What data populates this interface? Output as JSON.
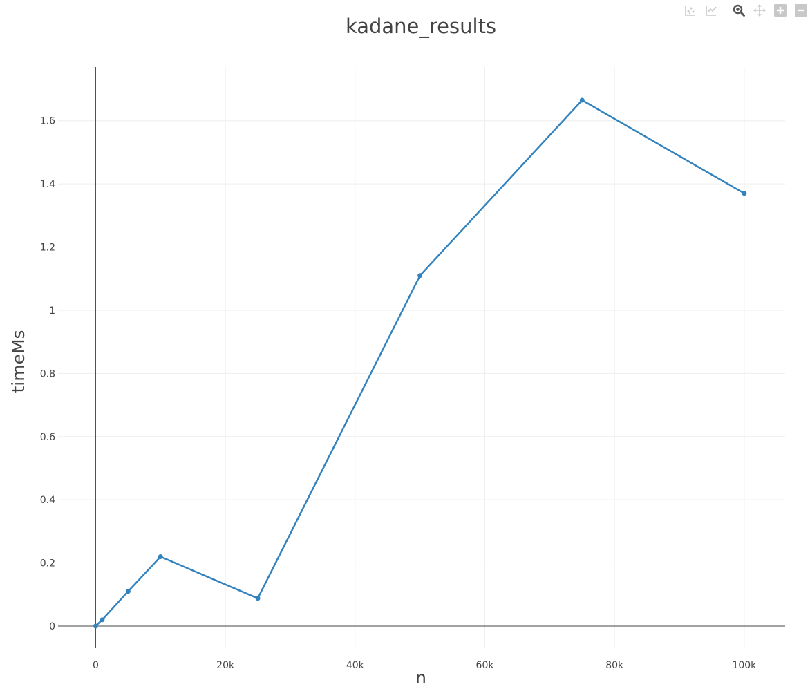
{
  "toolbar": {
    "buttons": [
      {
        "name": "compare-data-icon",
        "active": false
      },
      {
        "name": "show-closest-icon",
        "active": false
      },
      {
        "name": "zoom-icon",
        "active": true
      },
      {
        "name": "pan-icon",
        "active": false
      },
      {
        "name": "zoom-in-icon",
        "active": false
      },
      {
        "name": "zoom-out-icon",
        "active": false
      }
    ],
    "icon_color": "#c8c8c8",
    "active_icon_color": "#555555"
  },
  "chart_data": {
    "type": "line",
    "title": "kadane_results",
    "xlabel": "n",
    "ylabel": "timeMs",
    "x": [
      0,
      1000,
      5000,
      10000,
      25000,
      50000,
      75000,
      100000
    ],
    "series": [
      {
        "values": [
          0.0,
          0.02,
          0.11,
          0.22,
          0.088,
          1.11,
          1.665,
          1.37
        ],
        "color": "#3282bd",
        "mode": "lines+markers"
      }
    ],
    "xlim": [
      -5800,
      106300
    ],
    "ylim": [
      -0.07,
      1.77
    ],
    "xticks": [
      0,
      20000,
      40000,
      60000,
      80000,
      100000
    ],
    "xtick_labels": [
      "0",
      "20k",
      "40k",
      "60k",
      "80k",
      "100k"
    ],
    "yticks": [
      0,
      0.2,
      0.4,
      0.6,
      0.8,
      1,
      1.2,
      1.4,
      1.6
    ],
    "ytick_labels": [
      "0",
      "0.2",
      "0.4",
      "0.6",
      "0.8",
      "1",
      "1.2",
      "1.4",
      "1.6"
    ],
    "grid": true,
    "legend": "none"
  }
}
